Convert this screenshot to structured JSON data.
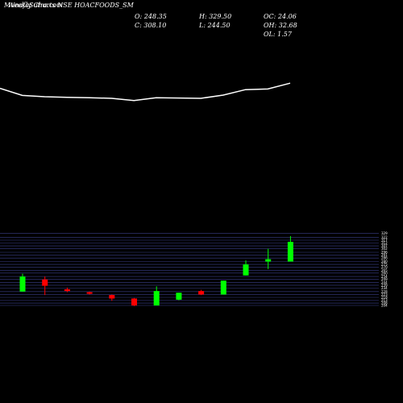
{
  "header": {
    "title_a": "MunafaSutra.com",
    "title_b": "Weekly Charts NSE HOACFOODS_SM",
    "o_label": "O: 248.35",
    "c_label": "C: 308.10",
    "h_label": "H: 329.50",
    "l_label": "L: 244.50",
    "oc_label": "OC: 24.06",
    "oh_label": "OH: 32.68",
    "ol_label": "OL: 1.57"
  },
  "colors": {
    "background": "#000000",
    "up": "#00ff00",
    "down": "#ff0000",
    "line": "#ffffff",
    "grid": "#3a3f8a"
  },
  "chart_data": [
    {
      "type": "line",
      "ylim": [
        0,
        1
      ],
      "x": [
        1,
        2,
        3,
        4,
        5,
        6,
        7,
        8,
        9,
        10,
        11,
        12,
        13,
        14
      ],
      "values": [
        0.88,
        0.77,
        0.75,
        0.74,
        0.735,
        0.725,
        0.69,
        0.735,
        0.73,
        0.725,
        0.775,
        0.86,
        0.87,
        0.96
      ]
    },
    {
      "type": "candlestick",
      "ylim": [
        204,
        329.5
      ],
      "tick_labels": [
        "329",
        "322",
        "317",
        "312",
        "307",
        "302",
        "296",
        "291",
        "286",
        "280",
        "275",
        "270",
        "265",
        "260",
        "254",
        "249",
        "244",
        "239",
        "234",
        "228",
        "223",
        "218",
        "213",
        "208",
        "204"
      ],
      "candles": [
        {
          "x": 1,
          "open": 228,
          "close": 254,
          "high": 259,
          "low": 228
        },
        {
          "x": 2,
          "open": 249,
          "close": 238,
          "high": 254,
          "low": 222
        },
        {
          "x": 3,
          "open": 232,
          "close": 229,
          "high": 235,
          "low": 227
        },
        {
          "x": 4,
          "open": 227,
          "close": 225,
          "high": 228,
          "low": 223
        },
        {
          "x": 5,
          "open": 222,
          "close": 216,
          "high": 223,
          "low": 212
        },
        {
          "x": 6,
          "open": 216,
          "close": 204,
          "high": 217,
          "low": 203
        },
        {
          "x": 7,
          "open": 204,
          "close": 229,
          "high": 237,
          "low": 204
        },
        {
          "x": 8,
          "open": 214,
          "close": 226,
          "high": 226,
          "low": 213
        },
        {
          "x": 9,
          "open": 229,
          "close": 223,
          "high": 231,
          "low": 222
        },
        {
          "x": 10,
          "open": 223,
          "close": 247,
          "high": 247,
          "low": 223
        },
        {
          "x": 11,
          "open": 256,
          "close": 275,
          "high": 282,
          "low": 256
        },
        {
          "x": 12,
          "open": 280,
          "close": 284,
          "high": 302,
          "low": 267
        },
        {
          "x": 13,
          "open": 280,
          "close": 314,
          "high": 324,
          "low": 280
        }
      ]
    }
  ]
}
